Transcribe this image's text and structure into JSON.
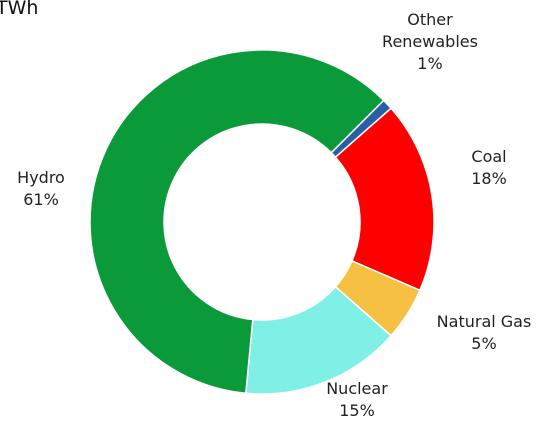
{
  "chart_data": {
    "type": "pie",
    "title": "TWh",
    "hole": true,
    "slices": [
      {
        "name": "Other Renewables",
        "label_lines": [
          "Other",
          "Renewables"
        ],
        "value": 1,
        "value_label": "1%",
        "color": "#2B5FA5"
      },
      {
        "name": "Coal",
        "label_lines": [
          "Coal"
        ],
        "value": 18,
        "value_label": "18%",
        "color": "#FF0000"
      },
      {
        "name": "Natural Gas",
        "label_lines": [
          "Natural Gas"
        ],
        "value": 5,
        "value_label": "5%",
        "color": "#F6C142"
      },
      {
        "name": "Nuclear",
        "label_lines": [
          "Nuclear"
        ],
        "value": 15,
        "value_label": "15%",
        "color": "#80F0E6"
      },
      {
        "name": "Hydro",
        "label_lines": [
          "Hydro"
        ],
        "value": 61,
        "value_label": "61%",
        "color": "#0B9A3A"
      }
    ]
  }
}
